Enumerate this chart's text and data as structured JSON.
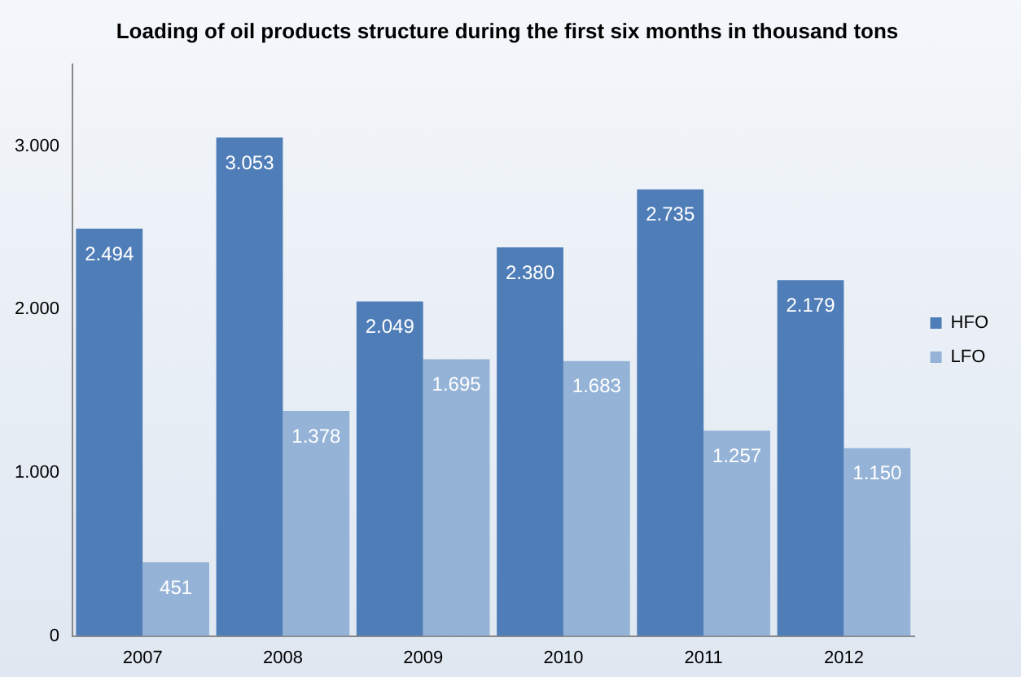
{
  "chart_data": {
    "type": "bar",
    "title": "Loading of oil products structure during the first six months in thousand tons",
    "categories": [
      "2007",
      "2008",
      "2009",
      "2010",
      "2011",
      "2012"
    ],
    "series": [
      {
        "name": "HFO",
        "color": "#4f7db8",
        "values": [
          2494,
          3053,
          2049,
          2380,
          2735,
          2179
        ],
        "value_labels": [
          "2.494",
          "3.053",
          "2.049",
          "2.380",
          "2.735",
          "2.179"
        ]
      },
      {
        "name": "LFO",
        "color": "#95b3d7",
        "values": [
          451,
          1378,
          1695,
          1683,
          1257,
          1150
        ],
        "value_labels": [
          "451",
          "1.378",
          "1.695",
          "1.683",
          "1.257",
          "1.150"
        ]
      }
    ],
    "ylim": [
      0,
      3500
    ],
    "yticks": [
      {
        "value": 0,
        "label": "0"
      },
      {
        "value": 1000,
        "label": "1.000"
      },
      {
        "value": 2000,
        "label": "2.000"
      },
      {
        "value": 3000,
        "label": "3.000"
      }
    ],
    "grid": false,
    "legend": "right"
  }
}
